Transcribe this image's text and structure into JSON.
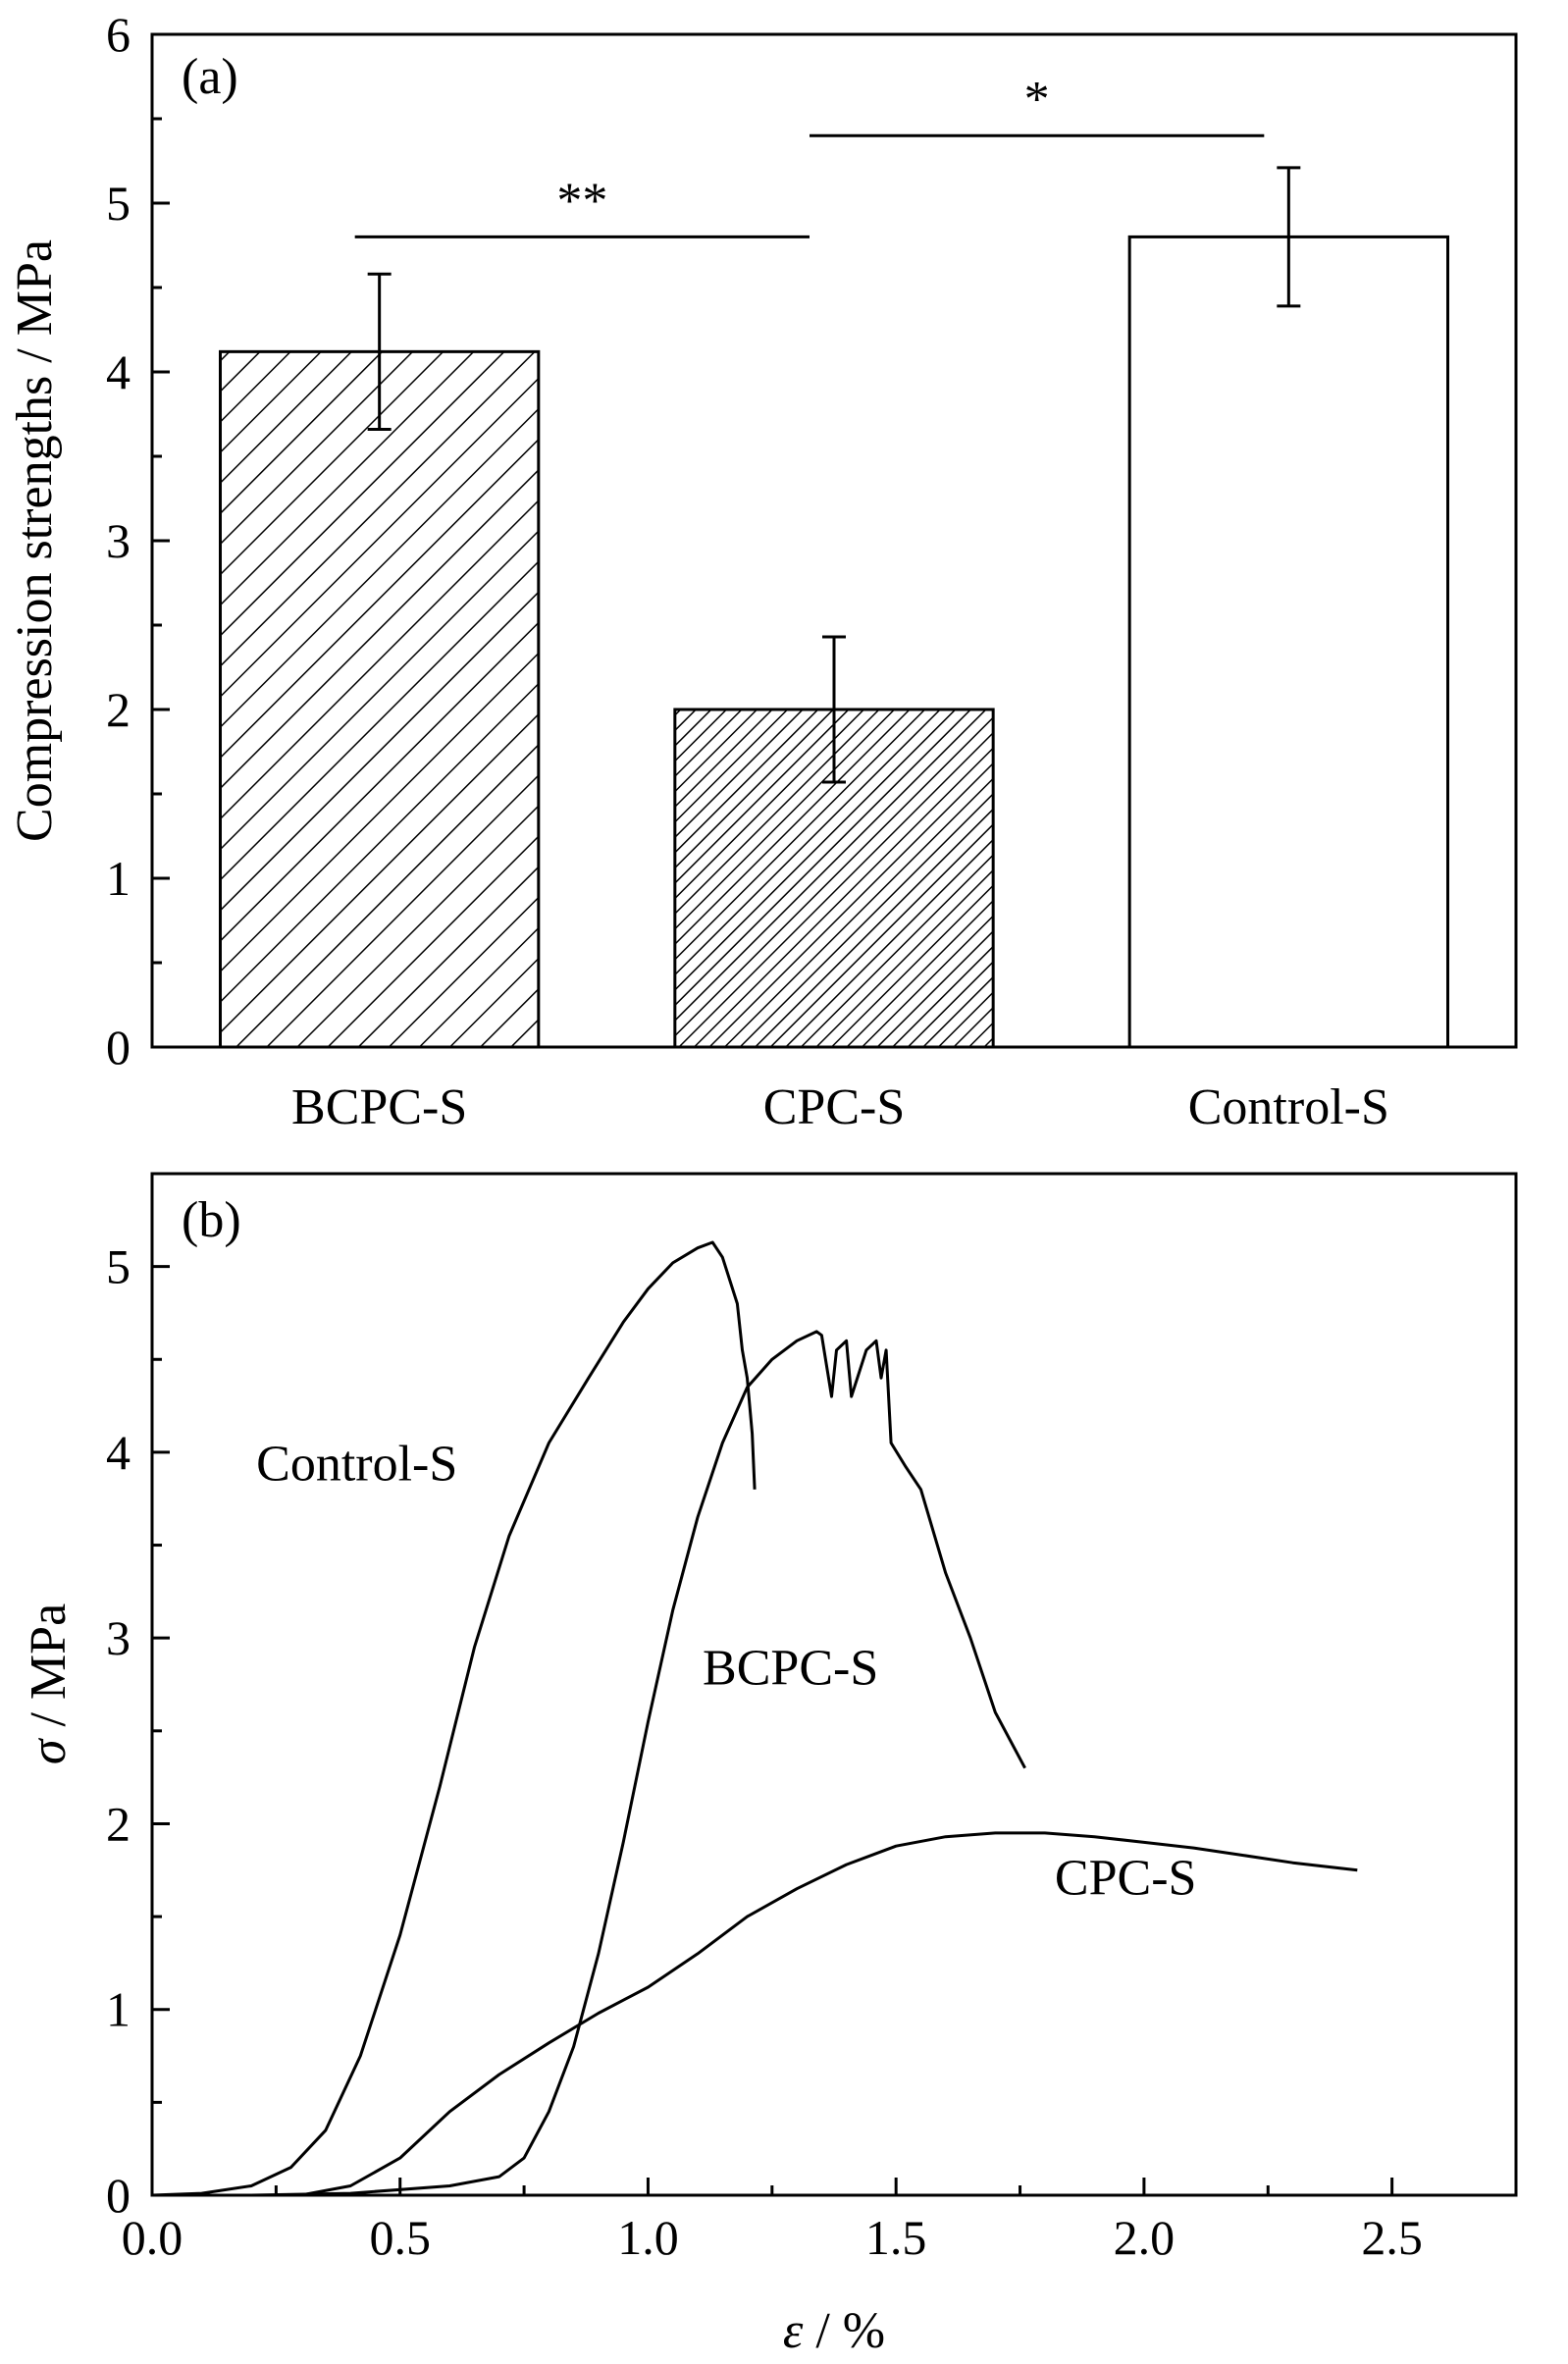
{
  "chart_data": [
    {
      "type": "bar",
      "panel_label": "(a)",
      "categories": [
        "BCPC-S",
        "CPC-S",
        "Control-S"
      ],
      "values": [
        4.12,
        2.0,
        4.8
      ],
      "errors": [
        0.46,
        0.43,
        0.41
      ],
      "fills": [
        "hatch-wide",
        "hatch-dense",
        "none"
      ],
      "ylabel": "Compression strengths / MPa",
      "ylim": [
        0,
        6
      ],
      "yticks": [
        "0",
        "1",
        "2",
        "3",
        "4",
        "5",
        "6"
      ],
      "significance": [
        {
          "from": 0,
          "to": 1,
          "label": "**",
          "y": 4.8
        },
        {
          "from": 1,
          "to": 2,
          "label": "*",
          "y": 5.4
        }
      ]
    },
    {
      "type": "line",
      "panel_label": "(b)",
      "xlabel_sym": "ε",
      "xlabel_unit": " / %",
      "ylabel_sym": "σ",
      "ylabel_unit": " / MPa",
      "xlim": [
        0,
        2.75
      ],
      "ylim": [
        0,
        5.5
      ],
      "xticks": [
        "0.0",
        "0.5",
        "1.0",
        "1.5",
        "2.0",
        "2.5"
      ],
      "yticks": [
        "0",
        "1",
        "2",
        "3",
        "4",
        "5"
      ],
      "series": [
        {
          "name": "Control-S",
          "x": [
            0.0,
            0.1,
            0.2,
            0.28,
            0.35,
            0.42,
            0.5,
            0.58,
            0.65,
            0.72,
            0.8,
            0.88,
            0.95,
            1.0,
            1.05,
            1.1,
            1.13,
            1.15,
            1.18,
            1.19,
            1.2,
            1.21,
            1.215
          ],
          "y": [
            0.0,
            0.01,
            0.05,
            0.15,
            0.35,
            0.75,
            1.4,
            2.2,
            2.95,
            3.55,
            4.05,
            4.4,
            4.7,
            4.88,
            5.02,
            5.1,
            5.13,
            5.05,
            4.8,
            4.55,
            4.4,
            4.1,
            3.8
          ]
        },
        {
          "name": "BCPC-S",
          "x": [
            0.0,
            0.2,
            0.4,
            0.6,
            0.7,
            0.75,
            0.8,
            0.85,
            0.9,
            0.95,
            1.0,
            1.05,
            1.1,
            1.15,
            1.2,
            1.25,
            1.3,
            1.34,
            1.35,
            1.37,
            1.38,
            1.4,
            1.41,
            1.44,
            1.46,
            1.47,
            1.48,
            1.49,
            1.52,
            1.55,
            1.6,
            1.65,
            1.7,
            1.76
          ],
          "y": [
            0.0,
            0.0,
            0.01,
            0.05,
            0.1,
            0.2,
            0.45,
            0.8,
            1.3,
            1.9,
            2.55,
            3.15,
            3.65,
            4.05,
            4.35,
            4.5,
            4.6,
            4.65,
            4.63,
            4.3,
            4.55,
            4.6,
            4.3,
            4.55,
            4.6,
            4.4,
            4.55,
            4.05,
            3.92,
            3.8,
            3.35,
            3.0,
            2.6,
            2.3
          ]
        },
        {
          "name": "CPC-S",
          "x": [
            0.0,
            0.3,
            0.4,
            0.5,
            0.6,
            0.7,
            0.8,
            0.9,
            1.0,
            1.1,
            1.2,
            1.3,
            1.4,
            1.5,
            1.6,
            1.7,
            1.8,
            1.9,
            2.0,
            2.1,
            2.2,
            2.3,
            2.43
          ],
          "y": [
            0.0,
            0.0,
            0.05,
            0.2,
            0.45,
            0.65,
            0.82,
            0.98,
            1.12,
            1.3,
            1.5,
            1.65,
            1.78,
            1.88,
            1.93,
            1.95,
            1.95,
            1.93,
            1.9,
            1.87,
            1.83,
            1.79,
            1.75
          ]
        }
      ],
      "curve_labels": [
        {
          "text": "Control-S",
          "x": 0.21,
          "y": 3.85
        },
        {
          "text": "BCPC-S",
          "x": 1.11,
          "y": 2.75
        },
        {
          "text": "CPC-S",
          "x": 1.82,
          "y": 1.62
        }
      ]
    }
  ]
}
